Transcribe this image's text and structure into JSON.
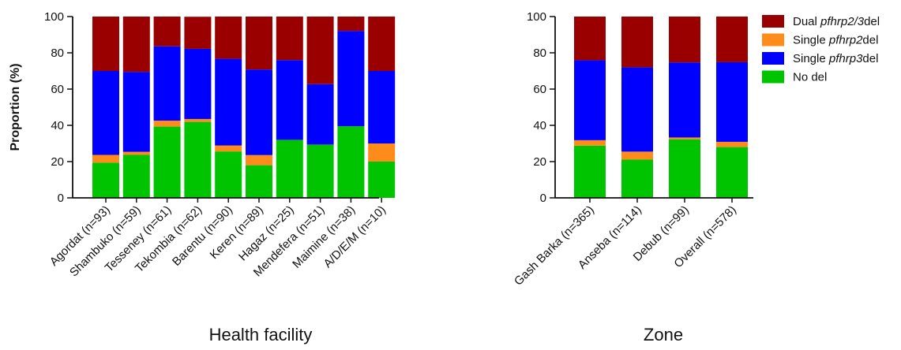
{
  "chart_data": [
    {
      "type": "bar",
      "stacked": true,
      "xlabel": "Health facility",
      "ylabel": "Proportion (%)",
      "ylim": [
        0,
        100
      ],
      "yticks": [
        "0",
        "20",
        "40",
        "60",
        "80",
        "100"
      ],
      "categories": [
        "Agordat (n=93)",
        "Shambuko (n=59)",
        "Tesseney (n=61)",
        "Tekombia (n=62)",
        "Barentu (n=90)",
        "Keren (n=89)",
        "Hagaz (n=25)",
        "Mendefera (n=51)",
        "Maimine (n=38)",
        "A/D/E/M (n=10)"
      ],
      "series": [
        {
          "name": "No del",
          "values": [
            19.4,
            23.7,
            39.3,
            41.9,
            25.6,
            18.0,
            32.0,
            29.4,
            39.5,
            20.0
          ]
        },
        {
          "name": "Single pfhrp2del",
          "values": [
            4.3,
            1.7,
            3.3,
            1.6,
            3.3,
            5.6,
            0,
            0,
            0,
            10.0
          ]
        },
        {
          "name": "Single pfhrp3del",
          "values": [
            46.3,
            44.1,
            41.0,
            38.7,
            47.8,
            47.2,
            44.0,
            33.3,
            52.6,
            40.0
          ]
        },
        {
          "name": "Dual pfhrp2/3del",
          "values": [
            30.0,
            30.5,
            16.4,
            17.7,
            23.3,
            29.2,
            24.0,
            37.3,
            7.9,
            30.0
          ]
        }
      ]
    },
    {
      "type": "bar",
      "stacked": true,
      "xlabel": "Zone",
      "ylabel": "",
      "ylim": [
        0,
        100
      ],
      "yticks": [
        "0",
        "20",
        "40",
        "60",
        "80",
        "100"
      ],
      "categories": [
        "Gash Barka (n=365)",
        "Anseba (n=114)",
        "Debub (n=99)",
        "Overall (n=578)"
      ],
      "series": [
        {
          "name": "No del",
          "values": [
            28.8,
            21.1,
            32.3,
            28.0
          ]
        },
        {
          "name": "Single pfhrp2del",
          "values": [
            3.0,
            4.4,
            1.0,
            2.9
          ]
        },
        {
          "name": "Single pfhrp3del",
          "values": [
            44.1,
            46.5,
            41.4,
            43.9
          ]
        },
        {
          "name": "Dual pfhrp2/3del",
          "values": [
            24.1,
            28.0,
            25.3,
            25.2
          ]
        }
      ]
    }
  ],
  "legend": {
    "placement": "top-right",
    "items": [
      {
        "prefix": "Dual ",
        "italic": "pfhrp2/3",
        "suffix": "del",
        "color": "#9b0000"
      },
      {
        "prefix": "Single ",
        "italic": "pfhrp2",
        "suffix": "del",
        "color": "#ff8c1a"
      },
      {
        "prefix": "Single ",
        "italic": "pfhrp3",
        "suffix": "del",
        "color": "#0000ff"
      },
      {
        "prefix": "No del",
        "italic": "",
        "suffix": "",
        "color": "#00c400"
      }
    ]
  },
  "colors": {
    "No del": "#00c400",
    "Single pfhrp2del": "#ff8c1a",
    "Single pfhrp3del": "#0000ff",
    "Dual pfhrp2/3del": "#9b0000"
  }
}
